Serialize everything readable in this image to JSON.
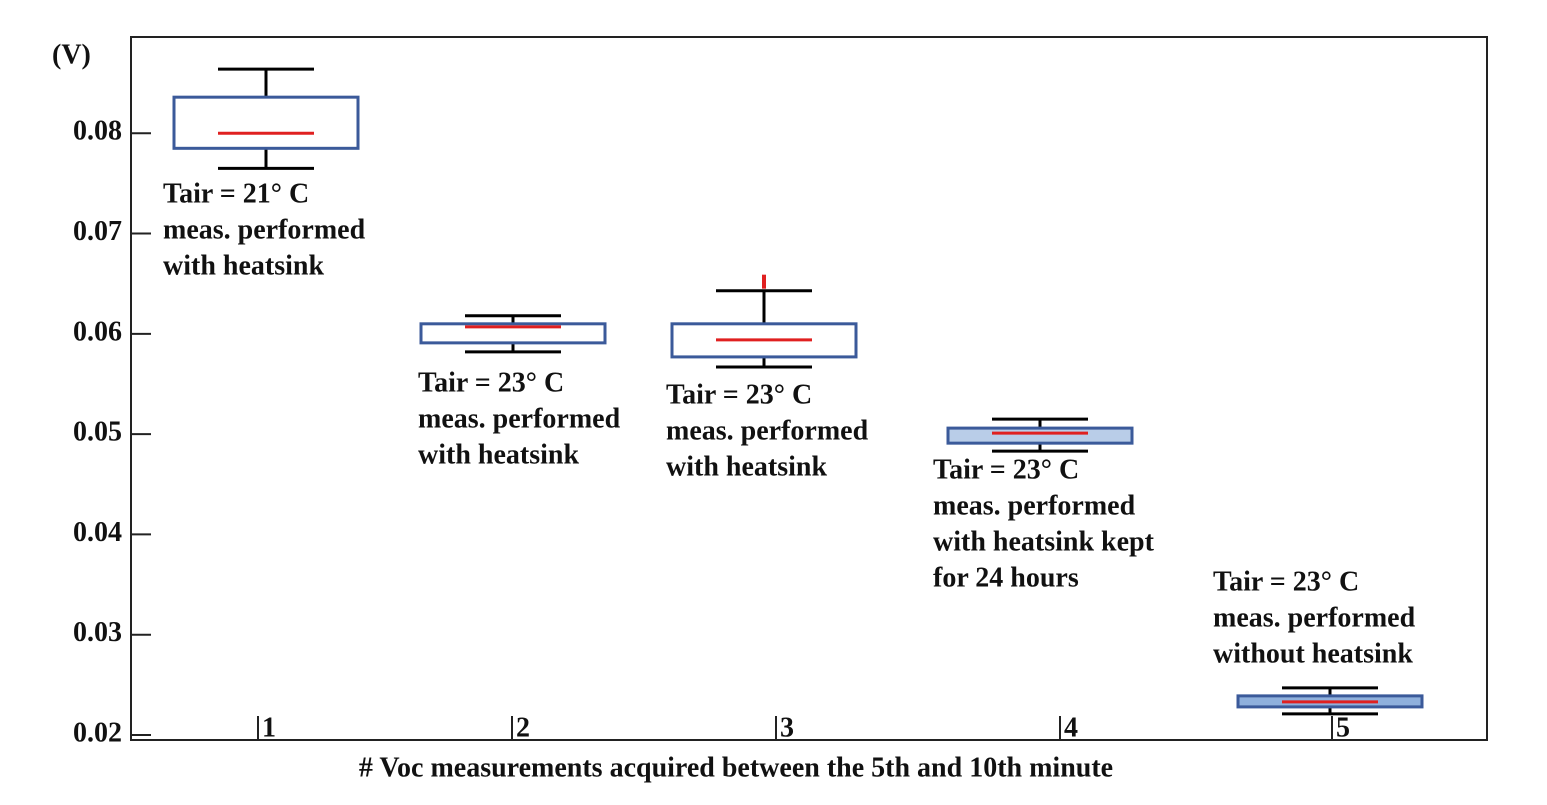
{
  "chart_data": {
    "type": "box",
    "y_label": "(V)",
    "x_label": "# Voc measurements acquired between the 5th and 10th minute",
    "categories": [
      "1",
      "2",
      "3",
      "4",
      "5"
    ],
    "boxes": [
      {
        "min": 0.0765,
        "q1": 0.0785,
        "median": 0.08,
        "q3": 0.0836,
        "max": 0.0864
      },
      {
        "min": 0.0582,
        "q1": 0.0591,
        "median": 0.0607,
        "q3": 0.061,
        "max": 0.0618
      },
      {
        "min": 0.0567,
        "q1": 0.0577,
        "median": 0.0594,
        "q3": 0.061,
        "max": 0.0643
      },
      {
        "min": 0.0483,
        "q1": 0.0491,
        "median": 0.0501,
        "q3": 0.0506,
        "max": 0.0515
      },
      {
        "min": 0.0221,
        "q1": 0.0228,
        "median": 0.0233,
        "q3": 0.0239,
        "max": 0.0247
      }
    ],
    "outliers": [
      [],
      [],
      [
        0.0659
      ],
      [],
      []
    ],
    "box_fills": [
      "#ffffff",
      "#ffffff",
      "#ffffff",
      "#b9cde8",
      "#8fb0dc"
    ],
    "box_color": "#3b5a9a",
    "median_color": "#e02020",
    "whisker_color": "#000000",
    "annotations": [
      [
        "Tair = 21° C",
        "meas. performed",
        "with heatsink"
      ],
      [
        "Tair = 23° C",
        "meas. performed",
        "with heatsink"
      ],
      [
        "Tair = 23° C",
        "meas. performed",
        "with heatsink"
      ],
      [
        "Tair = 23° C",
        "meas. performed",
        "with heatsink kept",
        "for 24 hours"
      ],
      [
        "Tair = 23° C",
        "meas. performed",
        "without heatsink"
      ]
    ],
    "ylim": [
      0.0195,
      0.0896
    ],
    "yticks": [
      0.02,
      0.03,
      0.04,
      0.05,
      0.06,
      0.07,
      0.08
    ]
  }
}
